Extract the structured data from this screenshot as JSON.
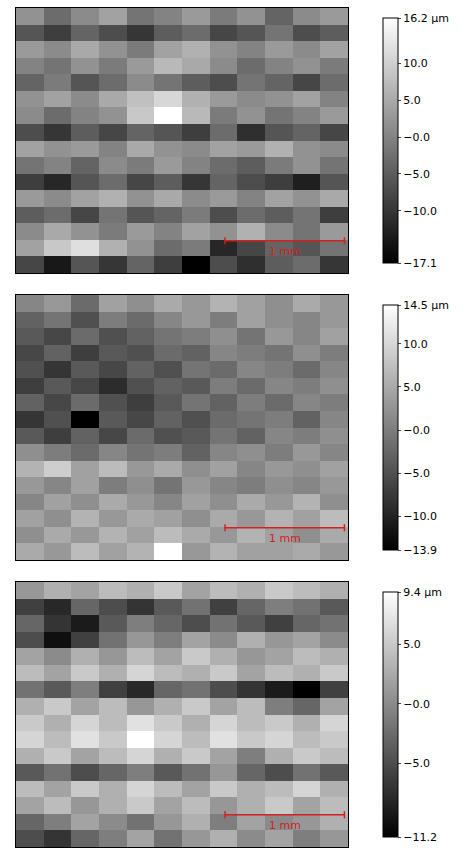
{
  "chart_data": [
    {
      "type": "heatmap",
      "xlim": [
        0,
        2.78
      ],
      "ylim": [
        0,
        2.22
      ],
      "tick_labels": false,
      "z": [
        [
          2,
          -3,
          1,
          4,
          -2,
          0,
          3,
          -1,
          2,
          -4,
          1,
          3
        ],
        [
          -6,
          -9,
          -4,
          -7,
          -10,
          -5,
          -3,
          -8,
          -6,
          -2,
          -7,
          -5
        ],
        [
          3,
          1,
          5,
          2,
          -1,
          4,
          6,
          2,
          0,
          3,
          1,
          4
        ],
        [
          0,
          -2,
          2,
          -1,
          3,
          7,
          5,
          1,
          -3,
          0,
          2,
          -1
        ],
        [
          -4,
          -1,
          -6,
          -3,
          1,
          -2,
          -5,
          -7,
          -2,
          -4,
          -8,
          -3
        ],
        [
          2,
          4,
          1,
          5,
          8,
          11,
          6,
          3,
          1,
          2,
          4,
          0
        ],
        [
          1,
          -3,
          0,
          2,
          9,
          16.2,
          7,
          -1,
          2,
          -2,
          0,
          3
        ],
        [
          -7,
          -10,
          -5,
          -8,
          -4,
          -6,
          -9,
          -3,
          -11,
          -6,
          -4,
          -8
        ],
        [
          4,
          2,
          3,
          0,
          5,
          2,
          1,
          4,
          3,
          6,
          2,
          1
        ],
        [
          -2,
          0,
          -4,
          1,
          -1,
          3,
          0,
          -3,
          -5,
          -1,
          2,
          -2
        ],
        [
          -9,
          -12,
          -6,
          -3,
          -8,
          -5,
          -10,
          -4,
          -7,
          -9,
          -13,
          -6
        ],
        [
          3,
          1,
          4,
          6,
          2,
          5,
          1,
          3,
          0,
          4,
          2,
          5
        ],
        [
          -5,
          -3,
          -8,
          -2,
          -6,
          -4,
          -1,
          -7,
          -3,
          -5,
          -2,
          -9
        ],
        [
          1,
          5,
          2,
          -1,
          3,
          0,
          4,
          2,
          6,
          1,
          -2,
          3
        ],
        [
          4,
          9,
          12,
          6,
          2,
          -3,
          -1,
          -12,
          -8,
          -4,
          -6,
          -2
        ],
        [
          -8,
          -14,
          -6,
          -10,
          -4,
          -9,
          -17.1,
          -7,
          -11,
          -5,
          -3,
          -10
        ]
      ],
      "colorbar": {
        "range": [
          -17.1,
          16.2
        ],
        "ticks": [
          {
            "value": 16.2,
            "label": "16.2 µm"
          },
          {
            "value": 10,
            "label": "10.0"
          },
          {
            "value": 5,
            "label": "5.0"
          },
          {
            "value": 0,
            "label": "−0.0"
          },
          {
            "value": -5,
            "label": "−5.0"
          },
          {
            "value": -10,
            "label": "−10.0"
          },
          {
            "value": -17.1,
            "label": "−17.1"
          }
        ]
      },
      "scale_bar": {
        "label": "1 mm",
        "start": 1.75,
        "end": 2.75,
        "y": 0.27
      }
    },
    {
      "type": "heatmap",
      "xlim": [
        0,
        2.78
      ],
      "ylim": [
        0,
        2.22
      ],
      "tick_labels": false,
      "z": [
        [
          1,
          3,
          -2,
          4,
          2,
          5,
          3,
          6,
          4,
          2,
          5,
          3
        ],
        [
          -3,
          -1,
          -5,
          0,
          -2,
          1,
          3,
          0,
          4,
          2,
          1,
          3
        ],
        [
          -4,
          -6,
          -2,
          -5,
          -3,
          -1,
          0,
          2,
          -1,
          3,
          1,
          4
        ],
        [
          -6,
          -3,
          -7,
          -4,
          -5,
          -2,
          -3,
          1,
          0,
          -1,
          2,
          0
        ],
        [
          -5,
          -8,
          -4,
          -6,
          -3,
          -5,
          -1,
          -2,
          1,
          0,
          -2,
          1
        ],
        [
          -7,
          -4,
          -6,
          -9,
          -5,
          -3,
          -4,
          0,
          -2,
          1,
          0,
          2
        ],
        [
          -3,
          -6,
          -2,
          -5,
          -7,
          -4,
          -1,
          -3,
          0,
          -2,
          1,
          0
        ],
        [
          -8,
          -5,
          -13.9,
          -4,
          -6,
          -3,
          -5,
          -2,
          -1,
          0,
          -3,
          1
        ],
        [
          -4,
          -7,
          -3,
          -6,
          -2,
          -5,
          -4,
          -1,
          -3,
          1,
          0,
          2
        ],
        [
          2,
          0,
          -2,
          1,
          -1,
          0,
          -3,
          1,
          2,
          0,
          3,
          1
        ],
        [
          6,
          9,
          4,
          7,
          3,
          5,
          2,
          4,
          1,
          3,
          2,
          4
        ],
        [
          3,
          1,
          4,
          0,
          2,
          -1,
          3,
          1,
          0,
          2,
          1,
          3
        ],
        [
          1,
          4,
          2,
          5,
          3,
          1,
          4,
          2,
          5,
          3,
          6,
          2
        ],
        [
          4,
          2,
          6,
          3,
          5,
          4,
          2,
          5,
          3,
          6,
          4,
          7
        ],
        [
          2,
          5,
          3,
          6,
          4,
          7,
          5,
          3,
          6,
          4,
          2,
          5
        ],
        [
          5,
          3,
          7,
          4,
          6,
          14.5,
          3,
          6,
          4,
          4,
          5,
          3
        ]
      ],
      "colorbar": {
        "range": [
          -13.9,
          14.5
        ],
        "ticks": [
          {
            "value": 14.5,
            "label": "14.5 µm"
          },
          {
            "value": 10,
            "label": "10.0"
          },
          {
            "value": 5,
            "label": "5.0"
          },
          {
            "value": 0,
            "label": "−0.0"
          },
          {
            "value": -5,
            "label": "−5.0"
          },
          {
            "value": -10,
            "label": "−10.0"
          },
          {
            "value": -13.9,
            "label": "−13.9"
          }
        ]
      },
      "scale_bar": {
        "label": "1 mm",
        "start": 1.75,
        "end": 2.75,
        "y": 0.27
      }
    },
    {
      "type": "heatmap",
      "xlim": [
        0,
        2.78
      ],
      "ylim": [
        0,
        2.22
      ],
      "tick_labels": false,
      "z": [
        [
          1,
          3,
          2,
          4,
          3,
          5,
          2,
          4,
          3,
          5,
          4,
          3
        ],
        [
          -6,
          -8,
          -3,
          -5,
          -7,
          -4,
          -2,
          -6,
          -3,
          -1,
          -2,
          -4
        ],
        [
          -3,
          -7,
          -9,
          -4,
          -1,
          -3,
          -5,
          -2,
          -4,
          -6,
          -3,
          -2
        ],
        [
          -5,
          -10,
          -6,
          -2,
          1,
          -1,
          2,
          0,
          3,
          1,
          2,
          0
        ],
        [
          2,
          0,
          3,
          1,
          4,
          2,
          5,
          3,
          1,
          2,
          4,
          3
        ],
        [
          4,
          2,
          5,
          3,
          6,
          4,
          3,
          5,
          2,
          4,
          3,
          5
        ],
        [
          -2,
          -4,
          -1,
          -6,
          -8,
          -3,
          -2,
          -5,
          -7,
          -9,
          -11.2,
          -6
        ],
        [
          3,
          5,
          2,
          4,
          1,
          3,
          5,
          2,
          4,
          -1,
          -3,
          2
        ],
        [
          5,
          3,
          6,
          4,
          7,
          5,
          3,
          6,
          4,
          5,
          3,
          6
        ],
        [
          6,
          4,
          7,
          5,
          9.4,
          6,
          4,
          7,
          5,
          6,
          4,
          5
        ],
        [
          3,
          5,
          2,
          4,
          6,
          3,
          5,
          2,
          -1,
          3,
          5,
          4
        ],
        [
          -4,
          -2,
          -5,
          -3,
          -1,
          -4,
          -2,
          1,
          -3,
          -5,
          -2,
          -4
        ],
        [
          4,
          2,
          5,
          3,
          6,
          4,
          2,
          5,
          3,
          4,
          6,
          3
        ],
        [
          2,
          4,
          1,
          3,
          5,
          2,
          4,
          1,
          3,
          5,
          2,
          4
        ],
        [
          -3,
          -1,
          2,
          0,
          -2,
          1,
          3,
          -1,
          2,
          0,
          1,
          3
        ],
        [
          -5,
          -7,
          -3,
          -1,
          2,
          -2,
          1,
          3,
          0,
          2,
          -1,
          1
        ]
      ],
      "colorbar": {
        "range": [
          -11.2,
          9.4
        ],
        "ticks": [
          {
            "value": 9.4,
            "label": "9.4 µm"
          },
          {
            "value": 5,
            "label": "5.0"
          },
          {
            "value": 0,
            "label": "−0.0"
          },
          {
            "value": -5,
            "label": "−5.0"
          },
          {
            "value": -11.2,
            "label": "−11.2"
          }
        ]
      },
      "scale_bar": {
        "label": "1 mm",
        "start": 1.75,
        "end": 2.75,
        "y": 0.27
      }
    }
  ]
}
